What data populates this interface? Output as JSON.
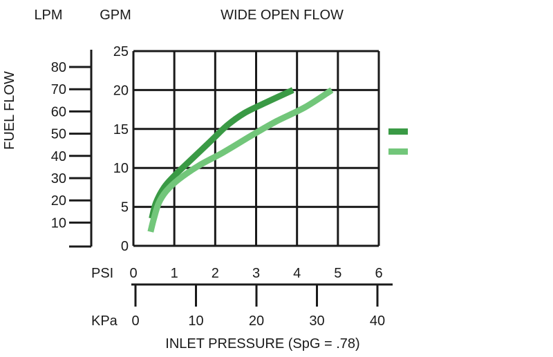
{
  "chart_data": {
    "type": "line",
    "title": "WIDE OPEN FLOW",
    "xlabel": "INLET PRESSURE (SpG = .78)",
    "ylabel": "FUEL FLOW",
    "x_axis_name": "PSI",
    "x_ticks": [
      "0",
      "1",
      "2",
      "3",
      "4",
      "5",
      "6"
    ],
    "xlim": [
      0,
      6
    ],
    "x2_axis_name": "KPa",
    "x2_ticks": [
      "0",
      "10",
      "20",
      "30",
      "40"
    ],
    "y_axis_name": "GPM",
    "y_ticks": [
      "0",
      "5",
      "10",
      "15",
      "20",
      "25"
    ],
    "ylim": [
      0,
      25
    ],
    "y2_axis_name": "LPM",
    "y2_ticks": [
      "10",
      "20",
      "30",
      "40",
      "50",
      "60",
      "70",
      "80"
    ],
    "grid": true,
    "legend_position": "right",
    "series": [
      {
        "color": "#3a9a45",
        "x": [
          0.45,
          0.55,
          0.75,
          1.0,
          1.4,
          1.9,
          2.3,
          2.7,
          3.2,
          3.9
        ],
        "y": [
          3.5,
          5.5,
          7.5,
          9.0,
          11.0,
          13.5,
          15.5,
          17.0,
          18.3,
          20.0
        ]
      },
      {
        "color": "#72c67a",
        "x": [
          0.42,
          0.5,
          0.62,
          0.8,
          1.1,
          1.6,
          2.2,
          2.9,
          3.5,
          4.2,
          4.85
        ],
        "y": [
          1.8,
          3.5,
          5.5,
          7.0,
          8.5,
          10.3,
          12.0,
          14.2,
          16.0,
          17.8,
          20.0
        ]
      }
    ]
  }
}
